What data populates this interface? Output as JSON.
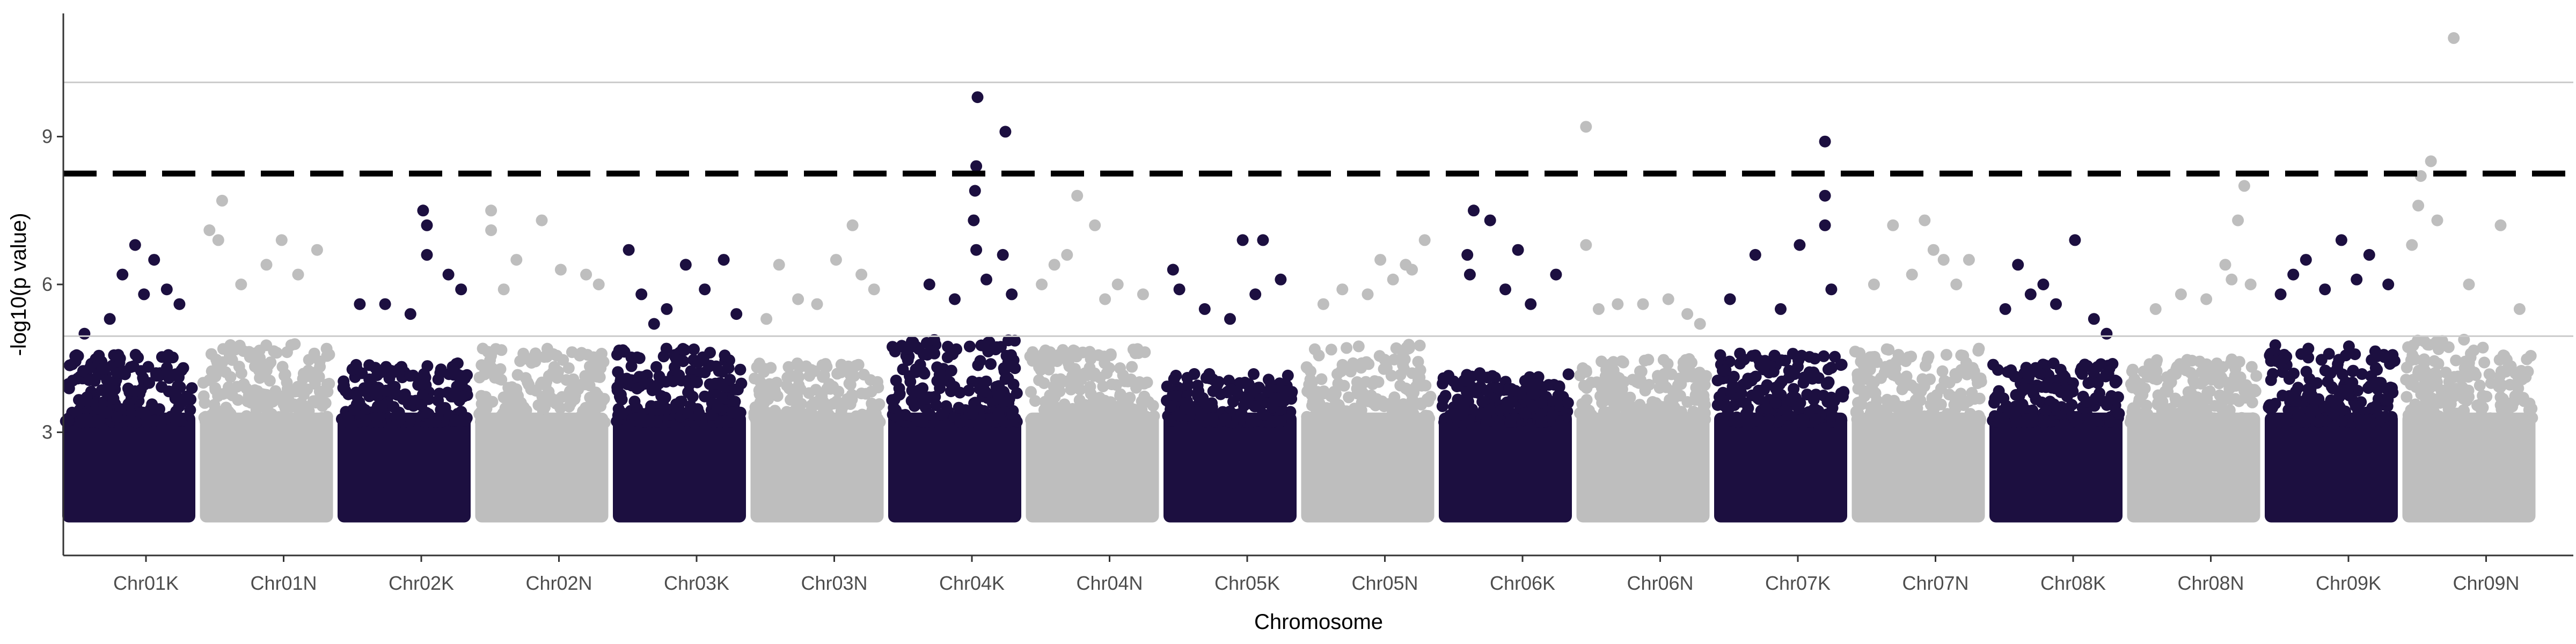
{
  "chart_data": {
    "type": "scatter",
    "title": "",
    "xlabel": "Chromosome",
    "ylabel": "-log10(p value)",
    "ylim": [
      0.5,
      11.5
    ],
    "yticks": [
      3,
      6,
      9
    ],
    "significance_line": 8.25,
    "suggestive_line": 4.95,
    "upper_reference_line": 10.1,
    "grid": false,
    "colors": {
      "dark": "#1c0f40",
      "light": "#bebebe",
      "axis": "#333333",
      "reference": "#cccccc",
      "threshold": "#000000"
    },
    "categories": [
      "Chr01K",
      "Chr01N",
      "Chr02K",
      "Chr02N",
      "Chr03K",
      "Chr03N",
      "Chr04K",
      "Chr04N",
      "Chr05K",
      "Chr05N",
      "Chr06K",
      "Chr06N",
      "Chr07K",
      "Chr07N",
      "Chr08K",
      "Chr08N",
      "Chr09K",
      "Chr09N"
    ],
    "series": [
      {
        "category": "Chr01K",
        "color": "dark",
        "base_max": 4.6,
        "peaks": [
          [
            0.55,
            6.8
          ],
          [
            0.7,
            6.5
          ],
          [
            0.45,
            6.2
          ],
          [
            0.8,
            5.9
          ],
          [
            0.35,
            5.3
          ],
          [
            0.15,
            5.0
          ],
          [
            0.9,
            5.6
          ],
          [
            0.62,
            5.8
          ]
        ]
      },
      {
        "category": "Chr01N",
        "color": "light",
        "base_max": 4.8,
        "peaks": [
          [
            0.05,
            7.1
          ],
          [
            0.15,
            7.7
          ],
          [
            0.12,
            6.9
          ],
          [
            0.62,
            6.9
          ],
          [
            0.5,
            6.4
          ],
          [
            0.9,
            6.7
          ],
          [
            0.3,
            6.0
          ],
          [
            0.75,
            6.2
          ]
        ]
      },
      {
        "category": "Chr02K",
        "color": "dark",
        "base_max": 4.4,
        "peaks": [
          [
            0.65,
            7.5
          ],
          [
            0.68,
            7.2
          ],
          [
            0.68,
            6.6
          ],
          [
            0.85,
            6.2
          ],
          [
            0.15,
            5.6
          ],
          [
            0.35,
            5.6
          ],
          [
            0.55,
            5.4
          ],
          [
            0.95,
            5.9
          ]
        ]
      },
      {
        "category": "Chr02N",
        "color": "light",
        "base_max": 4.7,
        "peaks": [
          [
            0.1,
            7.5
          ],
          [
            0.1,
            7.1
          ],
          [
            0.5,
            7.3
          ],
          [
            0.3,
            6.5
          ],
          [
            0.65,
            6.3
          ],
          [
            0.85,
            6.2
          ],
          [
            0.95,
            6.0
          ],
          [
            0.2,
            5.9
          ]
        ]
      },
      {
        "category": "Chr03K",
        "color": "dark",
        "base_max": 4.7,
        "peaks": [
          [
            0.1,
            6.7
          ],
          [
            0.55,
            6.4
          ],
          [
            0.85,
            6.5
          ],
          [
            0.2,
            5.8
          ],
          [
            0.4,
            5.5
          ],
          [
            0.7,
            5.9
          ],
          [
            0.95,
            5.4
          ],
          [
            0.3,
            5.2
          ]
        ]
      },
      {
        "category": "Chr03N",
        "color": "light",
        "base_max": 4.4,
        "peaks": [
          [
            0.2,
            6.4
          ],
          [
            0.65,
            6.5
          ],
          [
            0.78,
            7.2
          ],
          [
            0.85,
            6.2
          ],
          [
            0.35,
            5.7
          ],
          [
            0.5,
            5.6
          ],
          [
            0.95,
            5.9
          ],
          [
            0.1,
            5.3
          ]
        ]
      },
      {
        "category": "Chr04K",
        "color": "dark",
        "base_max": 4.9,
        "peaks": [
          [
            0.68,
            9.8
          ],
          [
            0.9,
            9.1
          ],
          [
            0.67,
            8.4
          ],
          [
            0.66,
            7.9
          ],
          [
            0.65,
            7.3
          ],
          [
            0.67,
            6.7
          ],
          [
            0.88,
            6.6
          ],
          [
            0.3,
            6.0
          ],
          [
            0.5,
            5.7
          ],
          [
            0.75,
            6.1
          ],
          [
            0.95,
            5.8
          ]
        ]
      },
      {
        "category": "Chr04N",
        "color": "light",
        "base_max": 4.7,
        "peaks": [
          [
            0.38,
            7.8
          ],
          [
            0.52,
            7.2
          ],
          [
            0.3,
            6.6
          ],
          [
            0.2,
            6.4
          ],
          [
            0.7,
            6.0
          ],
          [
            0.9,
            5.8
          ],
          [
            0.1,
            6.0
          ],
          [
            0.6,
            5.7
          ]
        ]
      },
      {
        "category": "Chr05K",
        "color": "dark",
        "base_max": 4.2,
        "peaks": [
          [
            0.6,
            6.9
          ],
          [
            0.76,
            6.9
          ],
          [
            0.9,
            6.1
          ],
          [
            0.05,
            6.3
          ],
          [
            0.1,
            5.9
          ],
          [
            0.3,
            5.5
          ],
          [
            0.5,
            5.3
          ],
          [
            0.7,
            5.8
          ]
        ]
      },
      {
        "category": "Chr05N",
        "color": "light",
        "base_max": 4.8,
        "peaks": [
          [
            0.95,
            6.9
          ],
          [
            0.6,
            6.5
          ],
          [
            0.8,
            6.4
          ],
          [
            0.3,
            5.9
          ],
          [
            0.5,
            5.8
          ],
          [
            0.15,
            5.6
          ],
          [
            0.7,
            6.1
          ],
          [
            0.85,
            6.3
          ]
        ]
      },
      {
        "category": "Chr06K",
        "color": "dark",
        "base_max": 4.2,
        "peaks": [
          [
            0.25,
            7.5
          ],
          [
            0.38,
            7.3
          ],
          [
            0.2,
            6.6
          ],
          [
            0.6,
            6.7
          ],
          [
            0.22,
            6.2
          ],
          [
            0.5,
            5.9
          ],
          [
            0.7,
            5.6
          ],
          [
            0.9,
            6.2
          ]
        ]
      },
      {
        "category": "Chr06N",
        "color": "light",
        "base_max": 4.5,
        "peaks": [
          [
            0.05,
            9.2
          ],
          [
            0.05,
            6.8
          ],
          [
            0.3,
            5.6
          ],
          [
            0.5,
            5.6
          ],
          [
            0.7,
            5.7
          ],
          [
            0.85,
            5.4
          ],
          [
            0.15,
            5.5
          ],
          [
            0.95,
            5.2
          ]
        ]
      },
      {
        "category": "Chr07K",
        "color": "dark",
        "base_max": 4.6,
        "peaks": [
          [
            0.85,
            8.9
          ],
          [
            0.85,
            7.8
          ],
          [
            0.85,
            7.2
          ],
          [
            0.65,
            6.8
          ],
          [
            0.3,
            6.6
          ],
          [
            0.1,
            5.7
          ],
          [
            0.5,
            5.5
          ],
          [
            0.9,
            5.9
          ]
        ]
      },
      {
        "category": "Chr07N",
        "color": "light",
        "base_max": 4.7,
        "peaks": [
          [
            0.3,
            7.2
          ],
          [
            0.55,
            7.3
          ],
          [
            0.7,
            6.5
          ],
          [
            0.62,
            6.7
          ],
          [
            0.9,
            6.5
          ],
          [
            0.15,
            6.0
          ],
          [
            0.45,
            6.2
          ],
          [
            0.8,
            6.0
          ]
        ]
      },
      {
        "category": "Chr08K",
        "color": "dark",
        "base_max": 4.4,
        "peaks": [
          [
            0.65,
            6.9
          ],
          [
            0.2,
            6.4
          ],
          [
            0.5,
            5.6
          ],
          [
            0.3,
            5.8
          ],
          [
            0.8,
            5.3
          ],
          [
            0.4,
            6.0
          ],
          [
            0.9,
            5.0
          ],
          [
            0.1,
            5.5
          ]
        ]
      },
      {
        "category": "Chr08N",
        "color": "light",
        "base_max": 4.5,
        "peaks": [
          [
            0.9,
            8.0
          ],
          [
            0.85,
            7.3
          ],
          [
            0.75,
            6.4
          ],
          [
            0.8,
            6.1
          ],
          [
            0.4,
            5.8
          ],
          [
            0.6,
            5.7
          ],
          [
            0.2,
            5.5
          ],
          [
            0.95,
            6.0
          ]
        ]
      },
      {
        "category": "Chr09K",
        "color": "dark",
        "base_max": 4.8,
        "peaks": [
          [
            0.3,
            6.5
          ],
          [
            0.58,
            6.9
          ],
          [
            0.8,
            6.6
          ],
          [
            0.2,
            6.2
          ],
          [
            0.7,
            6.1
          ],
          [
            0.95,
            6.0
          ],
          [
            0.45,
            5.9
          ],
          [
            0.1,
            5.8
          ]
        ]
      },
      {
        "category": "Chr09N",
        "color": "light",
        "base_max": 4.9,
        "peaks": [
          [
            0.38,
            11.0
          ],
          [
            0.2,
            8.5
          ],
          [
            0.12,
            8.2
          ],
          [
            0.1,
            7.6
          ],
          [
            0.25,
            7.3
          ],
          [
            0.05,
            6.8
          ],
          [
            0.75,
            7.2
          ],
          [
            0.5,
            6.0
          ],
          [
            0.9,
            5.5
          ]
        ]
      }
    ]
  }
}
